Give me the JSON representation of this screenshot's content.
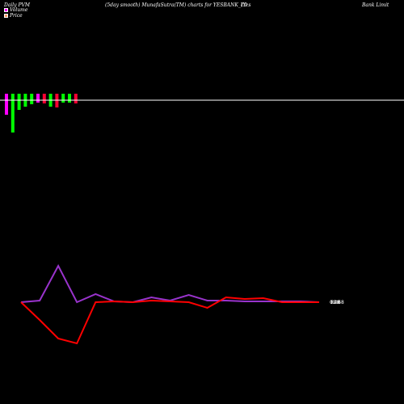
{
  "header": {
    "left": "Daily PVM",
    "center": "(5day smooth) MunafaSutra(TM) charts for YESBANK_T0",
    "right_a": "(Yes",
    "right_b": "Bank Limit"
  },
  "legend": {
    "volume_label": "Volume",
    "price_label": "Price",
    "volume_color": "#ff00ff",
    "price_color": "#ff9966"
  },
  "colors": {
    "background": "#000000",
    "baseline": "#ffffff",
    "up_bar": "#00ff00",
    "down_bar": "#ff0033",
    "volume_line": "#9933cc",
    "price_line": "#ff0000"
  },
  "chart_data": {
    "type": "line",
    "volume_bars": {
      "values": [
        -18,
        -40,
        -12,
        -8,
        -5,
        -3,
        -4,
        -8,
        -9,
        -3,
        -3,
        -4
      ],
      "colors": [
        "#ff00ff",
        "#00ff00",
        "#00ff00",
        "#00ff00",
        "#00ff00",
        "#ff00ff",
        "#ff0033",
        "#00ff00",
        "#ff0033",
        "#00ff00",
        "#00ff00",
        "#ff0033"
      ]
    },
    "volume_line": [
      0,
      2,
      45,
      0,
      10,
      1,
      0,
      6,
      2,
      9,
      2,
      2,
      1,
      1,
      1,
      1,
      0
    ],
    "price_line": [
      0,
      -22,
      -45,
      -51,
      0,
      1,
      0,
      2,
      1,
      0,
      -7,
      6,
      4,
      5,
      0,
      0,
      0
    ],
    "end_labels": [
      "0.00",
      "12.68",
      "Rs0"
    ]
  }
}
